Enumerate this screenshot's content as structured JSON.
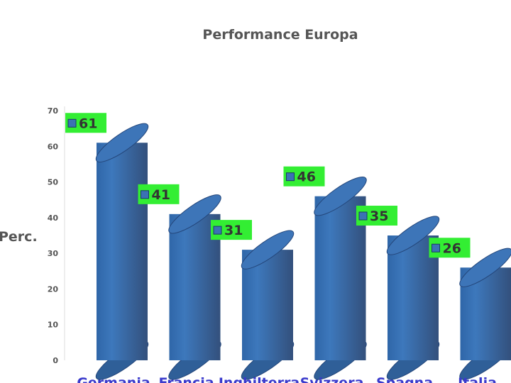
{
  "chart_data": {
    "type": "bar",
    "title": "Performance Europa",
    "xlabel": "",
    "ylabel": "Perc.",
    "categories": [
      "Germania",
      "Francia",
      "Inghilterra",
      "Svizzera",
      "Spagna",
      "Italia"
    ],
    "values": [
      61,
      41,
      31,
      46,
      35,
      26
    ],
    "ylim": [
      0,
      70
    ],
    "yticks": [
      0,
      10,
      20,
      30,
      40,
      50,
      60,
      70
    ],
    "grid": false,
    "legend": "none",
    "bar_color": "#3b72b4",
    "label_bg_color": "#33ee33"
  }
}
